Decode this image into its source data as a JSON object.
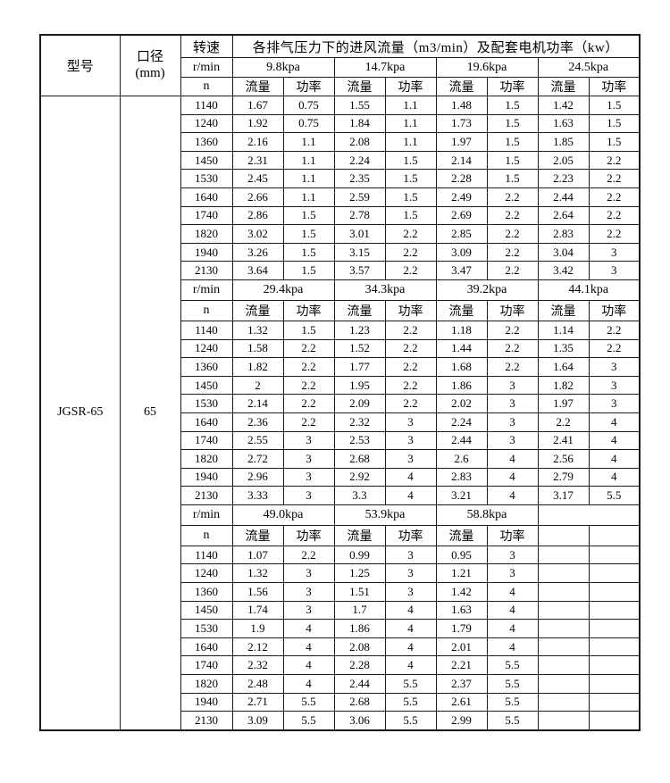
{
  "table": {
    "header": {
      "model": "型号",
      "diameter_line1": "口径",
      "diameter_line2": "(mm)",
      "speed": "转速",
      "speed_unit": "r/min",
      "speed_n": "n",
      "title": "各排气压力下的进风流量（m3/min）及配套电机功率（kw）",
      "flow": "流量",
      "power": "功率"
    },
    "model_value": "JGSR-65",
    "diameter_value": "65",
    "sections": [
      {
        "pressures": [
          "9.8kpa",
          "14.7kpa",
          "19.6kpa",
          "24.5kpa"
        ],
        "rows": [
          [
            "1140",
            "1.67",
            "0.75",
            "1.55",
            "1.1",
            "1.48",
            "1.5",
            "1.42",
            "1.5"
          ],
          [
            "1240",
            "1.92",
            "0.75",
            "1.84",
            "1.1",
            "1.73",
            "1.5",
            "1.63",
            "1.5"
          ],
          [
            "1360",
            "2.16",
            "1.1",
            "2.08",
            "1.1",
            "1.97",
            "1.5",
            "1.85",
            "1.5"
          ],
          [
            "1450",
            "2.31",
            "1.1",
            "2.24",
            "1.5",
            "2.14",
            "1.5",
            "2.05",
            "2.2"
          ],
          [
            "1530",
            "2.45",
            "1.1",
            "2.35",
            "1.5",
            "2.28",
            "1.5",
            "2.23",
            "2.2"
          ],
          [
            "1640",
            "2.66",
            "1.1",
            "2.59",
            "1.5",
            "2.49",
            "2.2",
            "2.44",
            "2.2"
          ],
          [
            "1740",
            "2.86",
            "1.5",
            "2.78",
            "1.5",
            "2.69",
            "2.2",
            "2.64",
            "2.2"
          ],
          [
            "1820",
            "3.02",
            "1.5",
            "3.01",
            "2.2",
            "2.85",
            "2.2",
            "2.83",
            "2.2"
          ],
          [
            "1940",
            "3.26",
            "1.5",
            "3.15",
            "2.2",
            "3.09",
            "2.2",
            "3.04",
            "3"
          ],
          [
            "2130",
            "3.64",
            "1.5",
            "3.57",
            "2.2",
            "3.47",
            "2.2",
            "3.42",
            "3"
          ]
        ]
      },
      {
        "pressures": [
          "29.4kpa",
          "34.3kpa",
          "39.2kpa",
          "44.1kpa"
        ],
        "rows": [
          [
            "1140",
            "1.32",
            "1.5",
            "1.23",
            "2.2",
            "1.18",
            "2.2",
            "1.14",
            "2.2"
          ],
          [
            "1240",
            "1.58",
            "2.2",
            "1.52",
            "2.2",
            "1.44",
            "2.2",
            "1.35",
            "2.2"
          ],
          [
            "1360",
            "1.82",
            "2.2",
            "1.77",
            "2.2",
            "1.68",
            "2.2",
            "1.64",
            "3"
          ],
          [
            "1450",
            "2",
            "2.2",
            "1.95",
            "2.2",
            "1.86",
            "3",
            "1.82",
            "3"
          ],
          [
            "1530",
            "2.14",
            "2.2",
            "2.09",
            "2.2",
            "2.02",
            "3",
            "1.97",
            "3"
          ],
          [
            "1640",
            "2.36",
            "2.2",
            "2.32",
            "3",
            "2.24",
            "3",
            "2.2",
            "4"
          ],
          [
            "1740",
            "2.55",
            "3",
            "2.53",
            "3",
            "2.44",
            "3",
            "2.41",
            "4"
          ],
          [
            "1820",
            "2.72",
            "3",
            "2.68",
            "3",
            "2.6",
            "4",
            "2.56",
            "4"
          ],
          [
            "1940",
            "2.96",
            "3",
            "2.92",
            "4",
            "2.83",
            "4",
            "2.79",
            "4"
          ],
          [
            "2130",
            "3.33",
            "3",
            "3.3",
            "4",
            "3.21",
            "4",
            "3.17",
            "5.5"
          ]
        ]
      },
      {
        "pressures": [
          "49.0kpa",
          "53.9kpa",
          "58.8kpa",
          ""
        ],
        "rows": [
          [
            "1140",
            "1.07",
            "2.2",
            "0.99",
            "3",
            "0.95",
            "3",
            "",
            ""
          ],
          [
            "1240",
            "1.32",
            "3",
            "1.25",
            "3",
            "1.21",
            "3",
            "",
            ""
          ],
          [
            "1360",
            "1.56",
            "3",
            "1.51",
            "3",
            "1.42",
            "4",
            "",
            ""
          ],
          [
            "1450",
            "1.74",
            "3",
            "1.7",
            "4",
            "1.63",
            "4",
            "",
            ""
          ],
          [
            "1530",
            "1.9",
            "4",
            "1.86",
            "4",
            "1.79",
            "4",
            "",
            ""
          ],
          [
            "1640",
            "2.12",
            "4",
            "2.08",
            "4",
            "2.01",
            "4",
            "",
            ""
          ],
          [
            "1740",
            "2.32",
            "4",
            "2.28",
            "4",
            "2.21",
            "5.5",
            "",
            ""
          ],
          [
            "1820",
            "2.48",
            "4",
            "2.44",
            "5.5",
            "2.37",
            "5.5",
            "",
            ""
          ],
          [
            "1940",
            "2.71",
            "5.5",
            "2.68",
            "5.5",
            "2.61",
            "5.5",
            "",
            ""
          ],
          [
            "2130",
            "3.09",
            "5.5",
            "3.06",
            "5.5",
            "2.99",
            "5.5",
            "",
            ""
          ]
        ]
      }
    ]
  }
}
